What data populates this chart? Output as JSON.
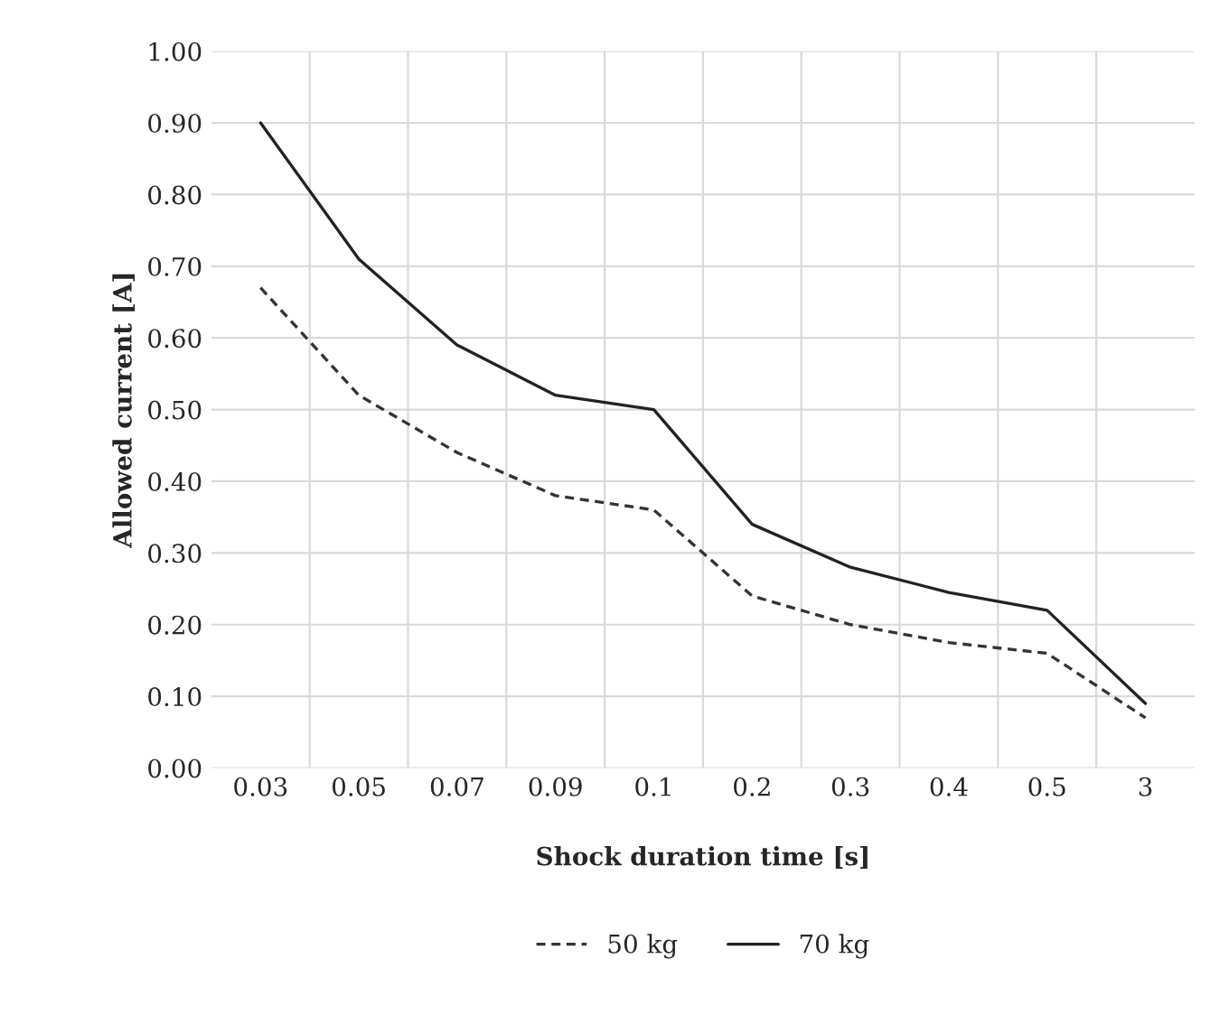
{
  "chart_data": {
    "type": "line",
    "xlabel": "Shock duration time [s]",
    "ylabel": "Allowed current [A]",
    "categories": [
      "0.03",
      "0.05",
      "0.07",
      "0.09",
      "0.1",
      "0.2",
      "0.3",
      "0.4",
      "0.5",
      "3"
    ],
    "series": [
      {
        "name": "50 kg",
        "color": "#333333",
        "line_style": "dashed",
        "values": [
          0.67,
          0.52,
          0.44,
          0.38,
          0.36,
          0.24,
          0.2,
          0.175,
          0.16,
          0.07
        ]
      },
      {
        "name": "70 kg",
        "color": "#222222",
        "line_style": "solid",
        "values": [
          0.9,
          0.71,
          0.59,
          0.52,
          0.5,
          0.34,
          0.28,
          0.245,
          0.22,
          0.09
        ]
      }
    ],
    "ylim": [
      0,
      1
    ],
    "yticks": [
      {
        "value": 0,
        "label": "0.00"
      },
      {
        "value": 0.1,
        "label": "0.10"
      },
      {
        "value": 0.2,
        "label": "0.20"
      },
      {
        "value": 0.3,
        "label": "0.30"
      },
      {
        "value": 0.4,
        "label": "0.40"
      },
      {
        "value": 0.5,
        "label": "0.50"
      },
      {
        "value": 0.6,
        "label": "0.60"
      },
      {
        "value": 0.7,
        "label": "0.70"
      },
      {
        "value": 0.8,
        "label": "0.80"
      },
      {
        "value": 0.9,
        "label": "0.90"
      },
      {
        "value": 1,
        "label": "1.00"
      }
    ],
    "grid": true,
    "legend": "bottom"
  }
}
